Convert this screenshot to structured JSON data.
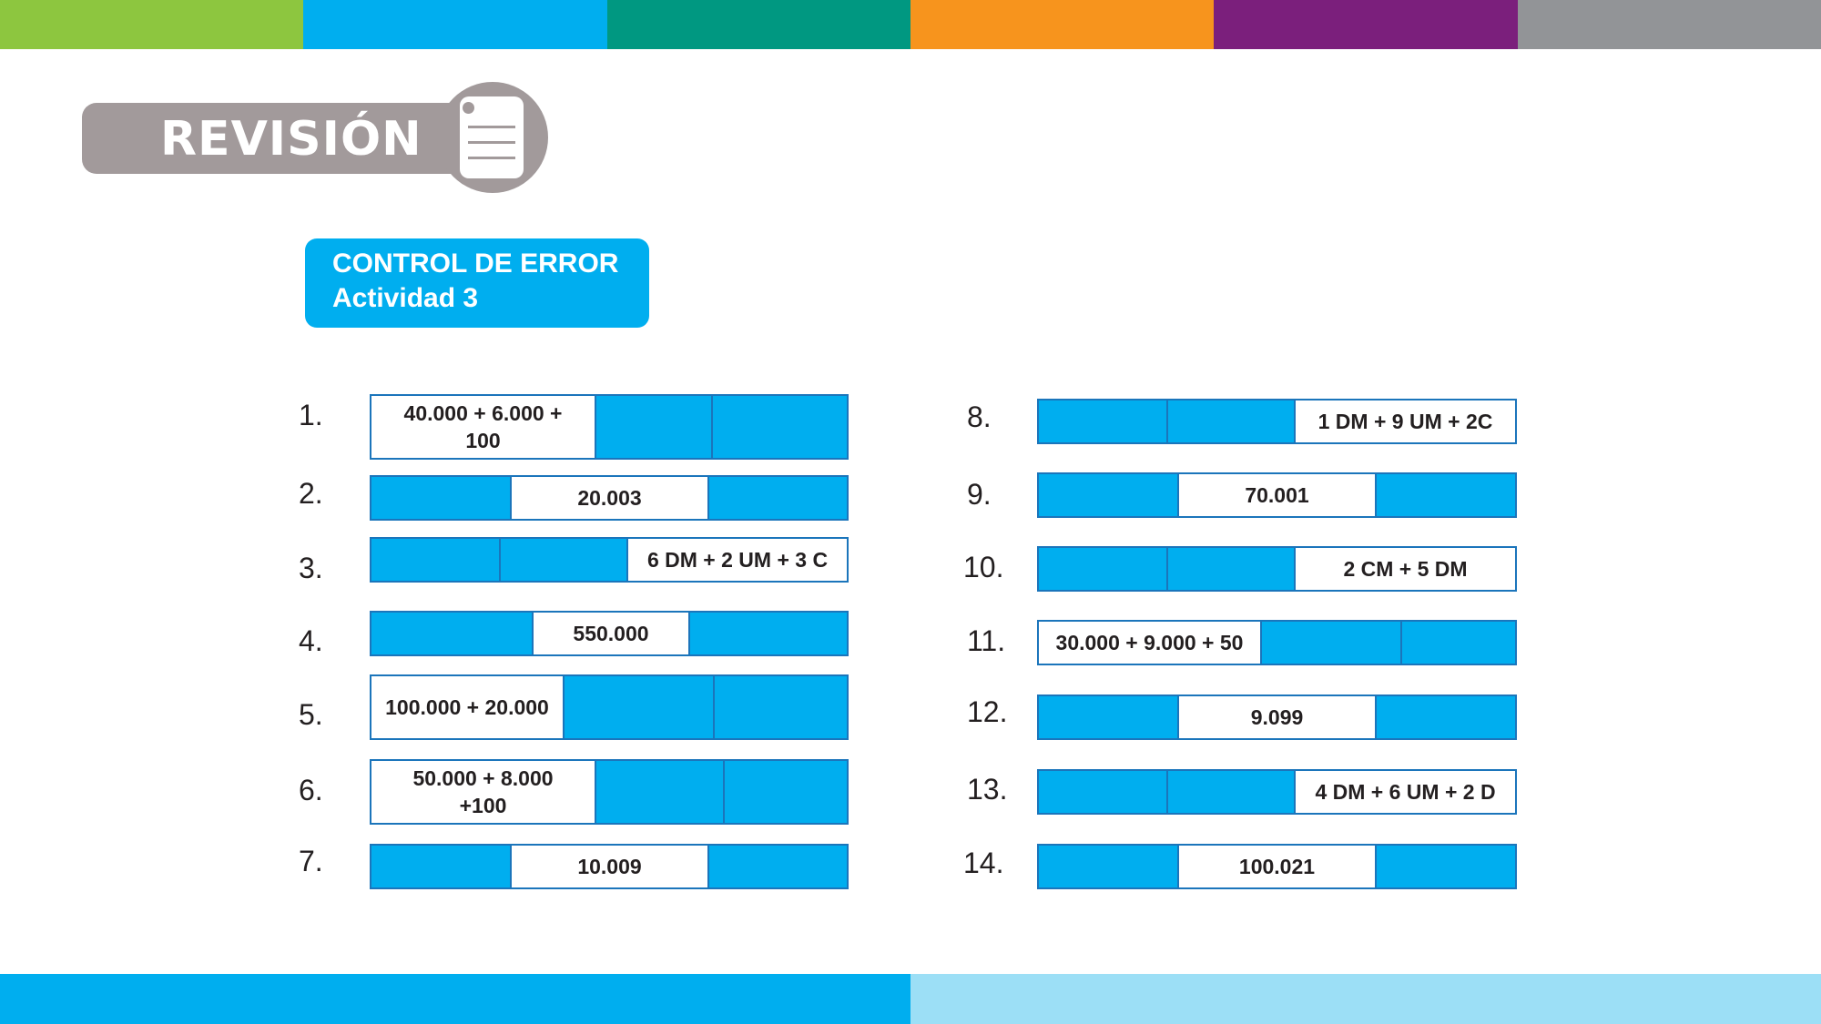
{
  "top_stripe_colors": [
    "#8dc63f",
    "#00aeef",
    "#009881",
    "#f7941d",
    "#7b1f7c",
    "#929497"
  ],
  "bottom_stripe_colors": [
    "#00aeef",
    "#9cdff6"
  ],
  "header": {
    "title": "REVISIÓN",
    "icon": "document-icon"
  },
  "control": {
    "line1": "CONTROL DE ERROR",
    "line2": "Actividad 3"
  },
  "items": [
    {
      "num": "1.",
      "text": "40.000 + 6.000 + 100"
    },
    {
      "num": "2.",
      "text": "20.003"
    },
    {
      "num": "3.",
      "text": "6 DM + 2 UM + 3 C"
    },
    {
      "num": "4.",
      "text": "550.000"
    },
    {
      "num": "5.",
      "text": "100.000 + 20.000"
    },
    {
      "num": "6.",
      "text": "50.000 + 8.000 +100"
    },
    {
      "num": "7.",
      "text": "10.009"
    },
    {
      "num": "8.",
      "text": "1 DM + 9 UM + 2C"
    },
    {
      "num": "9.",
      "text": "70.001"
    },
    {
      "num": "10.",
      "text": "2 CM + 5 DM"
    },
    {
      "num": "11.",
      "text": "30.000 + 9.000 + 50"
    },
    {
      "num": "12.",
      "text": "9.099"
    },
    {
      "num": "13.",
      "text": "4 DM + 6 UM + 2 D"
    },
    {
      "num": "14.",
      "text": "100.021"
    }
  ]
}
